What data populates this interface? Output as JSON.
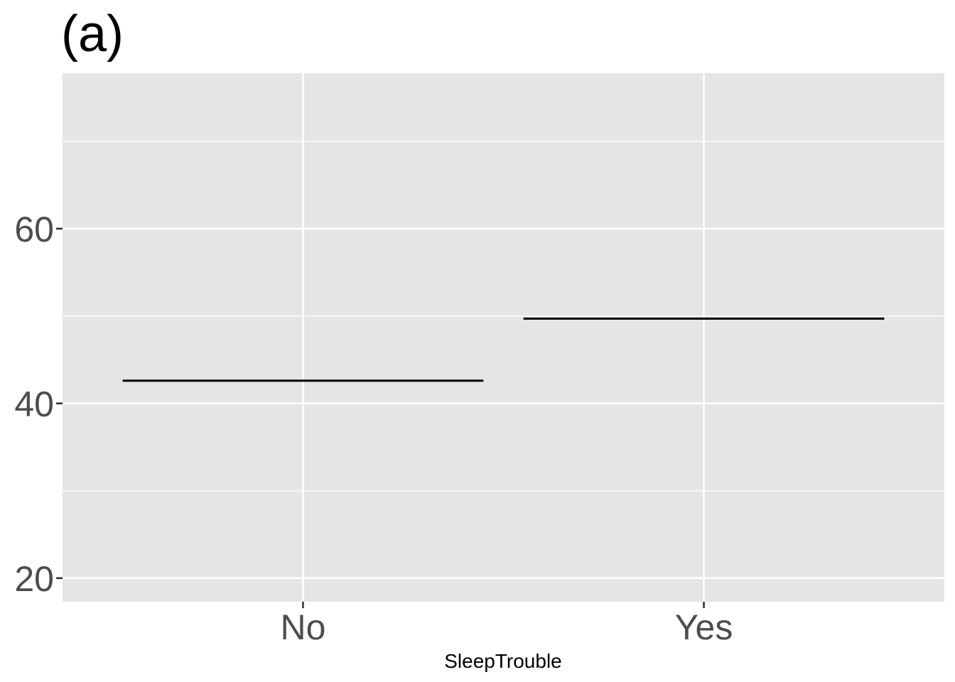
{
  "chart_data": {
    "type": "bar",
    "title": "(a)",
    "xlabel": "SleepTrouble",
    "ylabel": "",
    "categories": [
      "No",
      "Yes"
    ],
    "values": [
      42.6,
      49.7
    ],
    "ylim": [
      17.3,
      77.8
    ],
    "y_ticks": [
      20,
      40,
      60
    ],
    "y_tick_labels": [
      "20",
      "40",
      "60"
    ],
    "grid": true,
    "colors": {
      "panel_background": "#E5E5E5",
      "grid": "#FFFFFF",
      "mark": "#000000",
      "tick_text": "#4D4D4D",
      "tick_mark": "#333333"
    }
  }
}
